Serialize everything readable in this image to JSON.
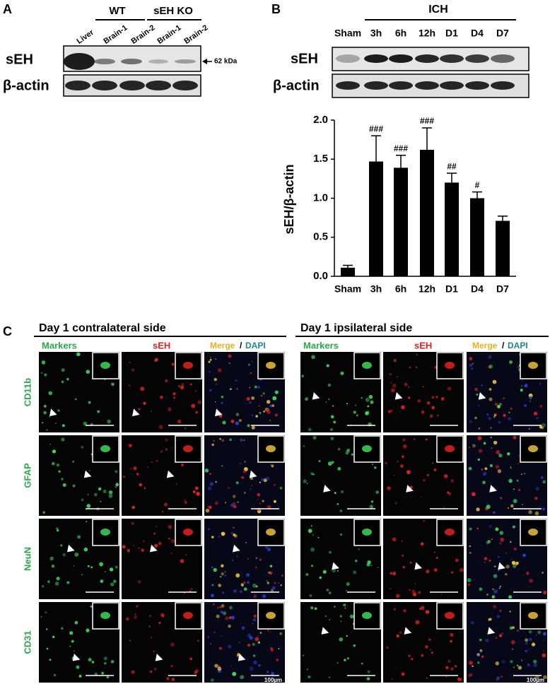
{
  "panel_a": {
    "label": "A",
    "groups": [
      "WT",
      "sEH KO"
    ],
    "lanes": [
      "Liver",
      "Brain-1",
      "Brain-2",
      "Brain-1",
      "Brain-2"
    ],
    "rows": [
      "sEH",
      "β-actin"
    ],
    "marker": "62 kDa"
  },
  "panel_b": {
    "label": "B",
    "group": "ICH",
    "lanes": [
      "Sham",
      "3h",
      "6h",
      "12h",
      "D1",
      "D4",
      "D7"
    ],
    "rows": [
      "sEH",
      "β-actin"
    ]
  },
  "chart_data": {
    "type": "bar",
    "categories": [
      "Sham",
      "3h",
      "6h",
      "12h",
      "D1",
      "D4",
      "D7"
    ],
    "values": [
      0.11,
      1.47,
      1.39,
      1.62,
      1.2,
      1.0,
      0.71
    ],
    "errors": [
      0.03,
      0.33,
      0.16,
      0.28,
      0.12,
      0.08,
      0.06
    ],
    "annotations": [
      null,
      "###",
      "###",
      "###",
      "##",
      "#",
      null
    ],
    "ylabel": "sEH/β-actin",
    "ylim": [
      0,
      2.0
    ],
    "yticks": [
      {
        "value": 0,
        "label": "0.0"
      },
      {
        "value": 0.5,
        "label": "0.5"
      },
      {
        "value": 1.0,
        "label": "1.0"
      },
      {
        "value": 1.5,
        "label": "1.5"
      },
      {
        "value": 2.0,
        "label": "2.0"
      }
    ],
    "color": "#000000"
  },
  "panel_c": {
    "label": "C",
    "sides": [
      {
        "title": "Day 1 contralateral side"
      },
      {
        "title": "Day 1 ipsilateral side"
      }
    ],
    "column_labels": {
      "markers": "Markers",
      "seh": "sEH",
      "merge": "Merge",
      "separator": "/",
      "dapi": "DAPI"
    },
    "rows": [
      "CD11b",
      "GFAP",
      "NeuN",
      "CD31"
    ],
    "scale_bar": "100µm"
  }
}
